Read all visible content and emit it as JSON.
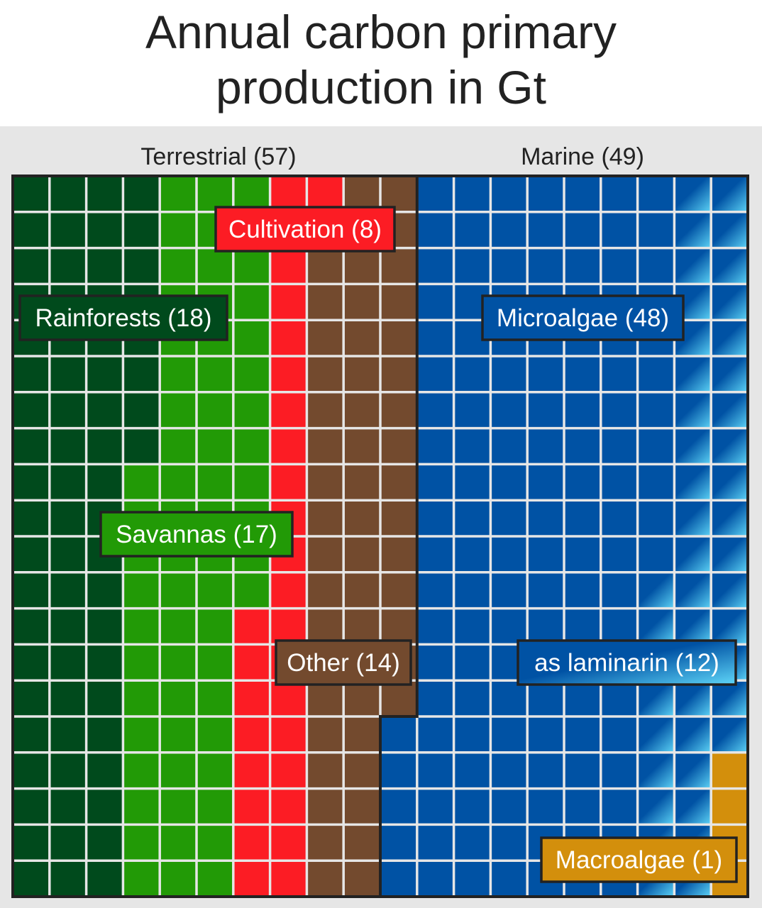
{
  "title": [
    "Annual carbon primary",
    "production in Gt"
  ],
  "colors": {
    "rainforests": "#004a1c",
    "savannas": "#229a06",
    "cultivation": "#fc1c24",
    "other": "#734a2e",
    "microalgae": "#0052a4",
    "laminarin_light": "#5fd6f8",
    "macroalgae": "#d38f0c",
    "background": "#e6e6e6",
    "grid": "#e6e6e6",
    "frame": "#222222"
  },
  "chart_data": {
    "type": "waffle",
    "title": "Annual carbon primary production in Gt",
    "unit": "Gt",
    "groups": [
      {
        "name": "Terrestrial",
        "label": "Terrestrial (57)",
        "total": 57,
        "categories": [
          {
            "name": "Rainforests",
            "label": "Rainforests (18)",
            "value": 18,
            "color_key": "rainforests"
          },
          {
            "name": "Savannas",
            "label": "Savannas (17)",
            "value": 17,
            "color_key": "savannas"
          },
          {
            "name": "Cultivation",
            "label": "Cultivation (8)",
            "value": 8,
            "color_key": "cultivation"
          },
          {
            "name": "Other",
            "label": "Other (14)",
            "value": 14,
            "color_key": "other"
          }
        ]
      },
      {
        "name": "Marine",
        "label": "Marine (49)",
        "total": 49,
        "categories": [
          {
            "name": "Microalgae",
            "label": "Microalgae (48)",
            "value": 48,
            "color_key": "microalgae"
          },
          {
            "name": "as laminarin",
            "label": "as laminarin (12)",
            "value": 12,
            "color_key": "laminarin_light",
            "subset_of": "Microalgae"
          },
          {
            "name": "Macroalgae",
            "label": "Macroalgae (1)",
            "value": 1,
            "color_key": "macroalgae"
          }
        ]
      }
    ]
  }
}
